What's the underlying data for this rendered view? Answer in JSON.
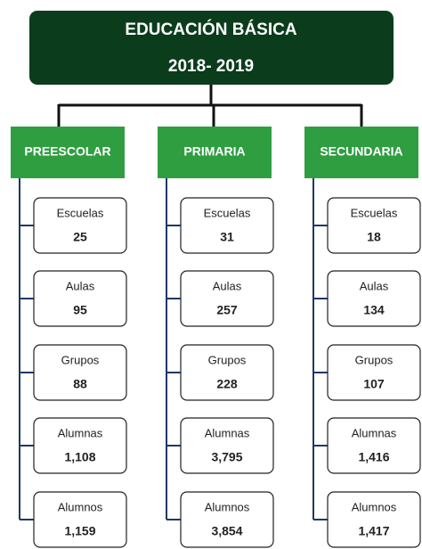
{
  "header": {
    "title": "EDUCACIÓN BÁSICA",
    "subtitle": "2018- 2019"
  },
  "columns": [
    {
      "name": "PREESCOLAR",
      "items": [
        {
          "label": "Escuelas",
          "value": "25"
        },
        {
          "label": "Aulas",
          "value": "95"
        },
        {
          "label": "Grupos",
          "value": "88"
        },
        {
          "label": "Alumnas",
          "value": "1,108"
        },
        {
          "label": "Alumnos",
          "value": "1,159"
        }
      ]
    },
    {
      "name": "PRIMARIA",
      "items": [
        {
          "label": "Escuelas",
          "value": "31"
        },
        {
          "label": "Aulas",
          "value": "257"
        },
        {
          "label": "Grupos",
          "value": "228"
        },
        {
          "label": "Alumnas",
          "value": "3,795"
        },
        {
          "label": "Alumnos",
          "value": "3,854"
        }
      ]
    },
    {
      "name": "SECUNDARIA",
      "items": [
        {
          "label": "Escuelas",
          "value": "18"
        },
        {
          "label": "Aulas",
          "value": "134"
        },
        {
          "label": "Grupos",
          "value": "107"
        },
        {
          "label": "Alumnas",
          "value": "1,416"
        },
        {
          "label": "Alumnos",
          "value": "1,417"
        }
      ]
    }
  ]
}
